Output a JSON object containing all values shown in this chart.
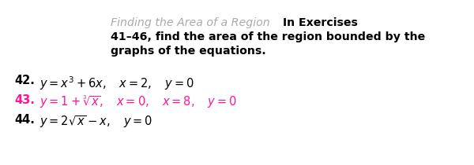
{
  "background_color": "#ffffff",
  "header_gray_color": "#aaaaaa",
  "header_gray_text": "Finding the Area of a Region",
  "header_bold_text": "In Exercises",
  "header_line2": "41–46, find the area of the region bounded by the",
  "header_line3": "graphs of the equations.",
  "line42_num": "42.",
  "line43_num": "43.",
  "line44_num": "44.",
  "line43_color": "#ff1493",
  "line42_color": "#000000",
  "line44_color": "#000000",
  "num_color": "#000000",
  "header_fontsize": 10.2,
  "body_fontsize": 10.5,
  "fig_width": 6.0,
  "fig_height": 2.1,
  "dpi": 100
}
